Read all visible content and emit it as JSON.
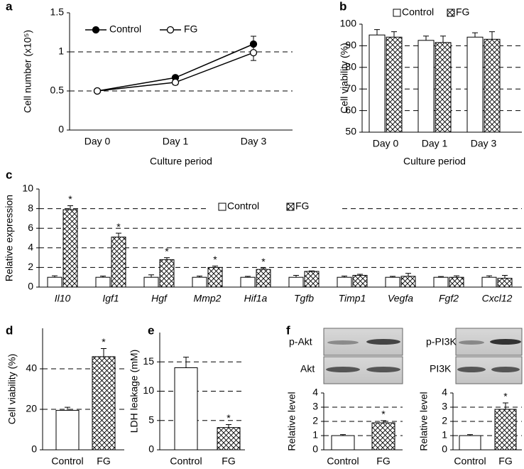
{
  "chart_data": [
    {
      "type": "line",
      "panel": "a",
      "ylabel": "Cell number (x10⁵)",
      "xlabel": "Culture period",
      "categories": [
        "Day 0",
        "Day 1",
        "Day 3"
      ],
      "series": [
        {
          "name": "Control",
          "color": "#000000",
          "marker_fill": "#000000",
          "values": [
            0.5,
            0.67,
            1.1
          ],
          "errors": [
            0.01,
            0.03,
            0.1
          ]
        },
        {
          "name": "FG",
          "color": "#000000",
          "marker_fill": "#ffffff",
          "values": [
            0.5,
            0.61,
            0.99
          ],
          "errors": [
            0.01,
            0.03,
            0.1
          ]
        }
      ],
      "ylim": [
        0,
        1.5
      ],
      "yticks": [
        0,
        0.5,
        1,
        1.5
      ],
      "grid": true,
      "legend": "top-left"
    },
    {
      "type": "bar",
      "panel": "b",
      "ylabel": "Cell viability (%)",
      "xlabel": "Culture period",
      "categories": [
        "Day 0",
        "Day 1",
        "Day 3"
      ],
      "series": [
        {
          "name": "Control",
          "fill": "white",
          "values": [
            95,
            92.5,
            94
          ],
          "errors": [
            2.5,
            2,
            2
          ]
        },
        {
          "name": "FG",
          "fill": "crosshatch",
          "values": [
            94,
            91.5,
            93
          ],
          "errors": [
            2.5,
            3,
            3.5
          ]
        }
      ],
      "ylim": [
        50,
        100
      ],
      "yticks": [
        50,
        60,
        70,
        80,
        90,
        100
      ],
      "grid": true,
      "legend": "top"
    },
    {
      "type": "bar",
      "panel": "c",
      "ylabel": "Relative expression",
      "italic_categories": true,
      "categories": [
        "Il10",
        "Igf1",
        "Hgf",
        "Mmp2",
        "Hif1a",
        "Tgfb",
        "Timp1",
        "Vegfa",
        "Fgf2",
        "Cxcl12"
      ],
      "series": [
        {
          "name": "Control",
          "fill": "white",
          "values": [
            1,
            1,
            1,
            1,
            1,
            1,
            1,
            1,
            1,
            1
          ],
          "errors": [
            0.15,
            0.12,
            0.25,
            0.12,
            0.1,
            0.2,
            0.12,
            0.1,
            0.08,
            0.15
          ]
        },
        {
          "name": "FG",
          "fill": "crosshatch",
          "values": [
            7.9,
            5.1,
            2.8,
            2.0,
            1.8,
            1.6,
            1.2,
            1.1,
            1.0,
            0.9
          ],
          "errors": [
            0.4,
            0.4,
            0.2,
            0.15,
            0.15,
            0.05,
            0.1,
            0.3,
            0.15,
            0.3
          ],
          "markers": [
            "*",
            "*",
            "*",
            "*",
            "*",
            null,
            null,
            null,
            null,
            null
          ]
        }
      ],
      "ylim": [
        0,
        10
      ],
      "yticks": [
        0,
        2,
        4,
        6,
        8,
        10
      ],
      "grid": true,
      "legend": "top-center"
    },
    {
      "type": "bar",
      "panel": "d",
      "ylabel": "Cell viability (%)",
      "categories": [
        "Control",
        "FG"
      ],
      "fills": [
        "white",
        "crosshatch"
      ],
      "values": [
        19.5,
        46
      ],
      "errors": [
        1.5,
        4
      ],
      "markers": [
        null,
        "*"
      ],
      "ylim": [
        0,
        60
      ],
      "yticks": [
        0,
        20,
        40
      ],
      "grid": true
    },
    {
      "type": "bar",
      "panel": "e",
      "ylabel": "LDH leakage (mM)",
      "categories": [
        "Control",
        "FG"
      ],
      "fills": [
        "white",
        "crosshatch"
      ],
      "values": [
        14,
        3.8
      ],
      "errors": [
        1.8,
        0.5
      ],
      "markers": [
        null,
        "*"
      ],
      "ylim": [
        0,
        20
      ],
      "yticks": [
        0,
        5,
        10,
        15
      ],
      "grid": true
    },
    {
      "type": "bar",
      "panel": "f",
      "ylabel": "Relative level",
      "blots": [
        "p-Akt",
        "Akt"
      ],
      "categories": [
        "Control",
        "FG"
      ],
      "fills": [
        "white",
        "crosshatch"
      ],
      "values": [
        1,
        1.9
      ],
      "errors": [
        0.07,
        0.15
      ],
      "markers": [
        null,
        "*"
      ],
      "ylim": [
        0,
        4
      ],
      "yticks": [
        0,
        1,
        2,
        3,
        4
      ],
      "grid": true
    },
    {
      "type": "bar",
      "ylabel": "Relative level",
      "blots": [
        "p-PI3K",
        "PI3K"
      ],
      "categories": [
        "Control",
        "FG"
      ],
      "fills": [
        "white",
        "crosshatch"
      ],
      "values": [
        1,
        2.85
      ],
      "errors": [
        0.07,
        0.45
      ],
      "markers": [
        null,
        "*"
      ],
      "ylim": [
        0,
        4
      ],
      "yticks": [
        0,
        1,
        2,
        3,
        4
      ],
      "grid": true
    }
  ]
}
